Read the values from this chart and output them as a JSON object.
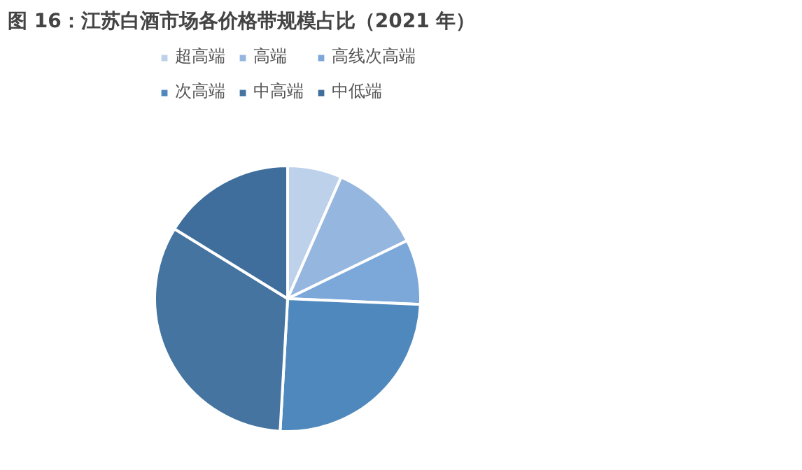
{
  "chart_data": {
    "type": "pie",
    "title": "图 16：江苏白酒市场各价格带规模占比（2021 年）",
    "categories": [
      "超高端",
      "高端",
      "高线次高端",
      "次高端",
      "中高端",
      "中低端"
    ],
    "values": [
      6.6,
      11.2,
      7.9,
      25.2,
      32.9,
      16.2
    ],
    "colors": [
      "#bdd1ea",
      "#95b6df",
      "#7ba7d9",
      "#4f88bd",
      "#44749f",
      "#3f6e9c"
    ],
    "legend": "top"
  }
}
